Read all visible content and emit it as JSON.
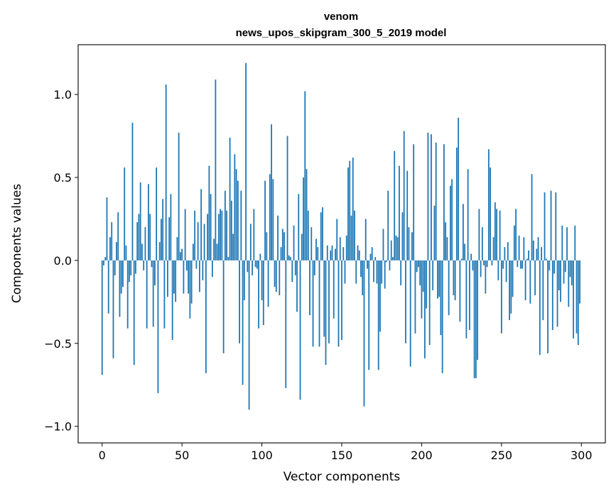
{
  "chart_data": {
    "type": "bar",
    "title": "venom",
    "subtitle": "news_upos_skipgram_300_5_2019 model",
    "xlabel": "Vector components",
    "ylabel": "Components values",
    "xlim": [
      -15,
      315
    ],
    "ylim": [
      -1.1,
      1.3
    ],
    "xticks": [
      0,
      50,
      100,
      150,
      200,
      250,
      300
    ],
    "yticks": [
      -1.0,
      -0.5,
      0.0,
      0.5,
      1.0
    ],
    "ytick_labels": [
      "−1.0",
      "−0.5",
      "0.0",
      "0.5",
      "1.0"
    ],
    "grid": false,
    "bar_color": "#1f77b4",
    "x": [
      0,
      1,
      2,
      3,
      4,
      5,
      6,
      7,
      8,
      9,
      10,
      11,
      12,
      13,
      14,
      15,
      16,
      17,
      18,
      19,
      20,
      21,
      22,
      23,
      24,
      25,
      26,
      27,
      28,
      29,
      30,
      31,
      32,
      33,
      34,
      35,
      36,
      37,
      38,
      39,
      40,
      41,
      42,
      43,
      44,
      45,
      46,
      47,
      48,
      49,
      50,
      51,
      52,
      53,
      54,
      55,
      56,
      57,
      58,
      59,
      60,
      61,
      62,
      63,
      64,
      65,
      66,
      67,
      68,
      69,
      70,
      71,
      72,
      73,
      74,
      75,
      76,
      77,
      78,
      79,
      80,
      81,
      82,
      83,
      84,
      85,
      86,
      87,
      88,
      89,
      90,
      91,
      92,
      93,
      94,
      95,
      96,
      97,
      98,
      99,
      100,
      101,
      102,
      103,
      104,
      105,
      106,
      107,
      108,
      109,
      110,
      111,
      112,
      113,
      114,
      115,
      116,
      117,
      118,
      119,
      120,
      121,
      122,
      123,
      124,
      125,
      126,
      127,
      128,
      129,
      130,
      131,
      132,
      133,
      134,
      135,
      136,
      137,
      138,
      139,
      140,
      141,
      142,
      143,
      144,
      145,
      146,
      147,
      148,
      149,
      150,
      151,
      152,
      153,
      154,
      155,
      156,
      157,
      158,
      159,
      160,
      161,
      162,
      163,
      164,
      165,
      166,
      167,
      168,
      169,
      170,
      171,
      172,
      173,
      174,
      175,
      176,
      177,
      178,
      179,
      180,
      181,
      182,
      183,
      184,
      185,
      186,
      187,
      188,
      189,
      190,
      191,
      192,
      193,
      194,
      195,
      196,
      197,
      198,
      199,
      200,
      201,
      202,
      203,
      204,
      205,
      206,
      207,
      208,
      209,
      210,
      211,
      212,
      213,
      214,
      215,
      216,
      217,
      218,
      219,
      220,
      221,
      222,
      223,
      224,
      225,
      226,
      227,
      228,
      229,
      230,
      231,
      232,
      233,
      234,
      235,
      236,
      237,
      238,
      239,
      240,
      241,
      242,
      243,
      244,
      245,
      246,
      247,
      248,
      249,
      250,
      251,
      252,
      253,
      254,
      255,
      256,
      257,
      258,
      259,
      260,
      261,
      262,
      263,
      264,
      265,
      266,
      267,
      268,
      269,
      270,
      271,
      272,
      273,
      274,
      275,
      276,
      277,
      278,
      279,
      280,
      281,
      282,
      283,
      284,
      285,
      286,
      287,
      288,
      289,
      290,
      291,
      292,
      293,
      294,
      295,
      296,
      297,
      298,
      299
    ],
    "values": [
      -0.69,
      -0.03,
      0.02,
      0.38,
      -0.32,
      0.14,
      0.23,
      -0.59,
      -0.09,
      0.11,
      0.29,
      -0.34,
      -0.2,
      -0.16,
      0.56,
      0.09,
      -0.41,
      -0.13,
      -0.09,
      0.83,
      -0.63,
      -0.08,
      0.23,
      0.28,
      0.47,
      0.1,
      -0.06,
      0.2,
      -0.41,
      0.46,
      0.28,
      -0.04,
      -0.4,
      -0.15,
      0.56,
      -0.8,
      0.11,
      0.25,
      0.37,
      -0.41,
      1.06,
      -0.22,
      0.26,
      0.4,
      -0.48,
      -0.2,
      -0.25,
      0.14,
      0.77,
      0.05,
      0.07,
      -0.2,
      0.31,
      -0.06,
      -0.2,
      -0.35,
      -0.26,
      0.1,
      0.3,
      -0.05,
      0.23,
      -0.19,
      0.43,
      -0.12,
      0.22,
      -0.68,
      0.28,
      0.57,
      0.4,
      -0.1,
      0.13,
      1.09,
      0.1,
      0.28,
      0.31,
      0.3,
      -0.56,
      0.42,
      0.3,
      0.02,
      0.74,
      0.36,
      0.16,
      0.64,
      0.55,
      0.48,
      -0.5,
      0.42,
      -0.75,
      -0.24,
      1.19,
      -0.07,
      -0.9,
      0.22,
      -0.09,
      0.31,
      -0.04,
      -0.05,
      -0.41,
      0.04,
      -0.24,
      -0.39,
      0.48,
      0.17,
      -0.28,
      0.52,
      0.82,
      0.49,
      -0.16,
      -0.19,
      0.27,
      -0.21,
      0.08,
      0.19,
      0.17,
      -0.77,
      0.75,
      0.03,
      0.02,
      -0.13,
      0.21,
      -0.09,
      -0.31,
      0.4,
      -0.84,
      0.16,
      0.5,
      1.02,
      0.55,
      0.3,
      -0.33,
      0.2,
      -0.52,
      -0.09,
      0.13,
      0.08,
      -0.52,
      0.29,
      0.32,
      -0.46,
      -0.63,
      0.09,
      -0.5,
      0.06,
      0.09,
      -0.35,
      0.07,
      0.25,
      -0.52,
      0.14,
      -0.48,
      0.08,
      -0.14,
      0.15,
      0.56,
      0.6,
      0.27,
      0.62,
      0.3,
      -0.14,
      0.09,
      0.06,
      -0.1,
      -0.21,
      -0.88,
      0.25,
      -0.05,
      -0.66,
      0.04,
      0.08,
      -0.13,
      0.02,
      -0.14,
      -0.66,
      -0.43,
      -0.14,
      0.19,
      -0.17,
      -0.01,
      0.42,
      -0.06,
      0.12,
      0.02,
      0.66,
      0.15,
      0.14,
      0.57,
      -0.15,
      0.29,
      0.78,
      -0.5,
      0.54,
      0.2,
      -0.64,
      0.17,
      0.7,
      -0.44,
      -0.07,
      -0.04,
      -0.15,
      -0.35,
      -0.19,
      -0.59,
      -0.29,
      0.77,
      -0.51,
      0.76,
      -0.18,
      0.33,
      0.71,
      -0.23,
      -0.22,
      -0.45,
      -0.68,
      0.7,
      0.23,
      0.14,
      -0.33,
      0.45,
      0.49,
      -0.21,
      -0.24,
      0.68,
      0.86,
      -0.37,
      0.01,
      0.34,
      0.1,
      -0.47,
      0.55,
      -0.42,
      0.04,
      -0.06,
      -0.71,
      -0.71,
      -0.6,
      0.31,
      -0.1,
      0.2,
      -0.03,
      -0.2,
      -0.04,
      0.67,
      0.56,
      -0.03,
      0.14,
      0.35,
      0.31,
      -0.12,
      0.3,
      -0.44,
      -0.05,
      0.08,
      -0.13,
      0.11,
      -0.36,
      -0.32,
      -0.22,
      0.21,
      0.31,
      -0.04,
      0.15,
      -0.05,
      -0.05,
      0.14,
      -0.24,
      0.01,
      0.06,
      -0.26,
      0.52,
      0.12,
      -0.21,
      0.07,
      0.14,
      -0.57,
      0.08,
      -0.36,
      0.41,
      0.01,
      -0.56,
      -0.06,
      0.42,
      -0.42,
      -0.08,
      0.41,
      -0.4,
      -0.18,
      -0.25,
      0.21,
      -0.14,
      -0.07,
      0.2,
      -0.28,
      -0.1,
      -0.15,
      -0.47,
      0.21,
      -0.44,
      -0.51,
      -0.26
    ]
  }
}
